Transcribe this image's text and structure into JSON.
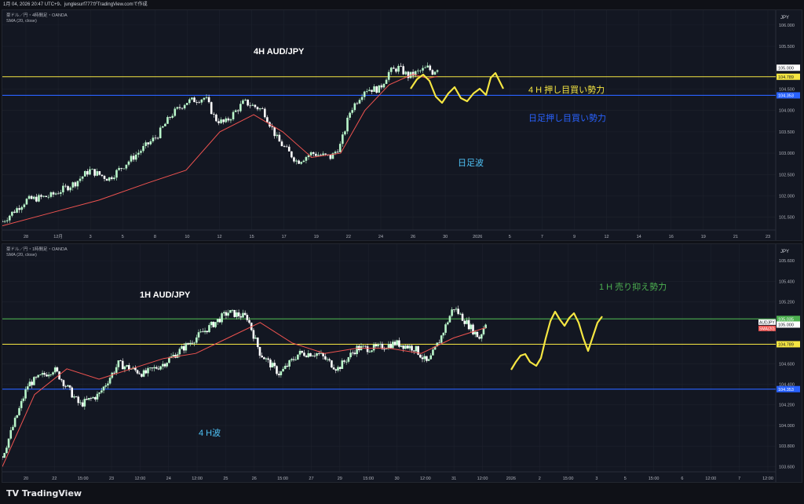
{
  "header": {
    "text": "1月 04, 2026 20:47 UTC+9、junglesurf777がTradingView.comで作成"
  },
  "footer": {
    "brand": "TradingView"
  },
  "colors": {
    "bg": "#131722",
    "up": "#b9f6ca",
    "down": "#ffffff",
    "sma": "#ef5350",
    "yellow": "#f5e642",
    "blue": "#2962ff",
    "green": "#4caf50",
    "grid": "#1e222d"
  },
  "chart_data": [
    {
      "type": "line",
      "title": "4H AUD/JPY",
      "legend_symbol": "豪ドル／円・4時間足・OANDA",
      "legend_indicator": "SMA (20, close)",
      "currency": "JPY",
      "ylim": [
        101.2,
        106.2
      ],
      "y_ticks": [
        106.0,
        105.5,
        104.5,
        104.0,
        103.5,
        103.0,
        102.5,
        102.0,
        101.5
      ],
      "x_ticks": [
        "28",
        "12月",
        "3",
        "5",
        "8",
        "10",
        "12",
        "15",
        "17",
        "19",
        "22",
        "24",
        "26",
        "30",
        "2026",
        "5",
        "7",
        "9",
        "12",
        "14",
        "16",
        "19",
        "21",
        "23"
      ],
      "series": [
        {
          "name": "SMA (20, close)",
          "x": [
            0,
            10,
            20,
            30,
            38,
            45,
            52,
            58,
            64,
            70,
            75,
            80,
            85,
            88,
            90
          ],
          "values": [
            101.3,
            101.6,
            101.9,
            102.3,
            102.6,
            103.5,
            103.9,
            103.5,
            102.9,
            103.0,
            104.0,
            104.6,
            104.85,
            104.75,
            104.8
          ]
        },
        {
          "name": "Close",
          "x": [
            0,
            5,
            10,
            15,
            18,
            22,
            28,
            32,
            35,
            38,
            42,
            44,
            46,
            50,
            54,
            57,
            61,
            64,
            68,
            70,
            72,
            75,
            78,
            80,
            82,
            84,
            86,
            88,
            89,
            90
          ],
          "values": [
            101.4,
            101.9,
            102.0,
            102.3,
            102.6,
            102.4,
            103.0,
            103.4,
            103.9,
            104.2,
            104.3,
            103.8,
            103.7,
            104.2,
            104.0,
            103.3,
            102.8,
            103.0,
            102.9,
            103.2,
            104.0,
            104.5,
            104.5,
            104.9,
            105.0,
            104.8,
            104.9,
            105.0,
            104.9,
            105.0
          ]
        }
      ],
      "price_labels": [
        "105.000",
        "104.789",
        "104.353"
      ],
      "horizontal_lines": [
        {
          "value": 104.789,
          "color": "yellow"
        },
        {
          "value": 104.353,
          "color": "blue"
        }
      ],
      "annotations": [
        "4 H 押し目買い勢力",
        "日足押し目買い勢力",
        "日足波"
      ]
    },
    {
      "type": "line",
      "title": "1H AUD/JPY",
      "legend_symbol": "豪ドル／円・1時間足・OANDA",
      "legend_indicator": "SMA (20, close)",
      "currency": "JPY",
      "ylim": [
        103.55,
        105.7
      ],
      "y_ticks": [
        105.6,
        105.4,
        105.2,
        104.8,
        104.6,
        104.4,
        104.2,
        104.0,
        103.8,
        103.6
      ],
      "x_ticks": [
        "20",
        "22",
        "15:00",
        "23",
        "12:00",
        "24",
        "12:00",
        "25",
        "26",
        "15:00",
        "27",
        "29",
        "15:00",
        "30",
        "12:00",
        "31",
        "12:00",
        "2026",
        "2",
        "15:00",
        "3",
        "5",
        "15:00",
        "6",
        "12:00",
        "7",
        "12:00"
      ],
      "series": [
        {
          "name": "SMA (20, close)",
          "x": [
            0,
            5,
            10,
            15,
            20,
            25,
            30,
            35,
            40,
            45,
            50,
            55,
            60,
            65,
            70,
            75
          ],
          "values": [
            103.6,
            104.3,
            104.55,
            104.45,
            104.55,
            104.65,
            104.7,
            104.85,
            105.0,
            104.8,
            104.7,
            104.75,
            104.75,
            104.7,
            104.85,
            104.95
          ]
        },
        {
          "name": "Close",
          "x": [
            0,
            4,
            8,
            12,
            15,
            18,
            22,
            25,
            28,
            32,
            35,
            38,
            40,
            43,
            46,
            49,
            52,
            55,
            58,
            61,
            64,
            66,
            68,
            70,
            72,
            74,
            75
          ],
          "values": [
            103.7,
            104.4,
            104.55,
            104.2,
            104.3,
            104.6,
            104.5,
            104.6,
            104.75,
            104.95,
            105.1,
            105.05,
            104.7,
            104.5,
            104.7,
            104.7,
            104.55,
            104.75,
            104.75,
            104.8,
            104.75,
            104.6,
            104.85,
            105.15,
            105.0,
            104.85,
            105.0
          ]
        }
      ],
      "price_labels": [
        "105.035",
        "105.000",
        "104.789",
        "104.353"
      ],
      "series_tags": [
        "AUDJPY",
        "SMA(20)"
      ],
      "horizontal_lines": [
        {
          "value": 105.035,
          "color": "green"
        },
        {
          "value": 104.789,
          "color": "yellow"
        },
        {
          "value": 104.353,
          "color": "blue"
        }
      ],
      "annotations": [
        "1 H 売り抑え勢力",
        "4 H波"
      ]
    }
  ]
}
